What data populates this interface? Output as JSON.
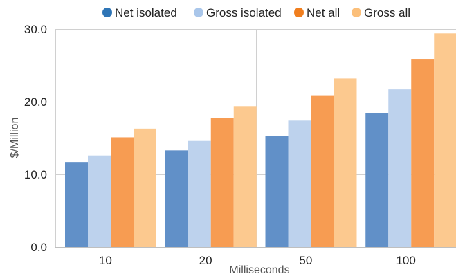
{
  "chart_data": {
    "type": "bar",
    "title": "",
    "xlabel": "Milliseconds",
    "ylabel": "$/Million",
    "categories": [
      "10",
      "20",
      "50",
      "100"
    ],
    "ylim": [
      0,
      30
    ],
    "yticks": [
      "0.0",
      "10.0",
      "20.0",
      "30.0"
    ],
    "grid": true,
    "legend_position": "top",
    "series": [
      {
        "name": "Net isolated",
        "color": "#6190c8",
        "legend_color": "#2e75b6",
        "values": [
          11.7,
          13.3,
          15.3,
          18.4
        ]
      },
      {
        "name": "Gross isolated",
        "color": "#bdd2ed",
        "legend_color": "#a9c6ea",
        "values": [
          12.6,
          14.6,
          17.4,
          21.7
        ]
      },
      {
        "name": "Net all",
        "color": "#f79c52",
        "legend_color": "#f07e1e",
        "values": [
          15.1,
          17.8,
          20.8,
          25.9
        ]
      },
      {
        "name": "Gross all",
        "color": "#fcc98f",
        "legend_color": "#fbbf7a",
        "values": [
          16.3,
          19.4,
          23.2,
          29.4
        ]
      }
    ]
  }
}
